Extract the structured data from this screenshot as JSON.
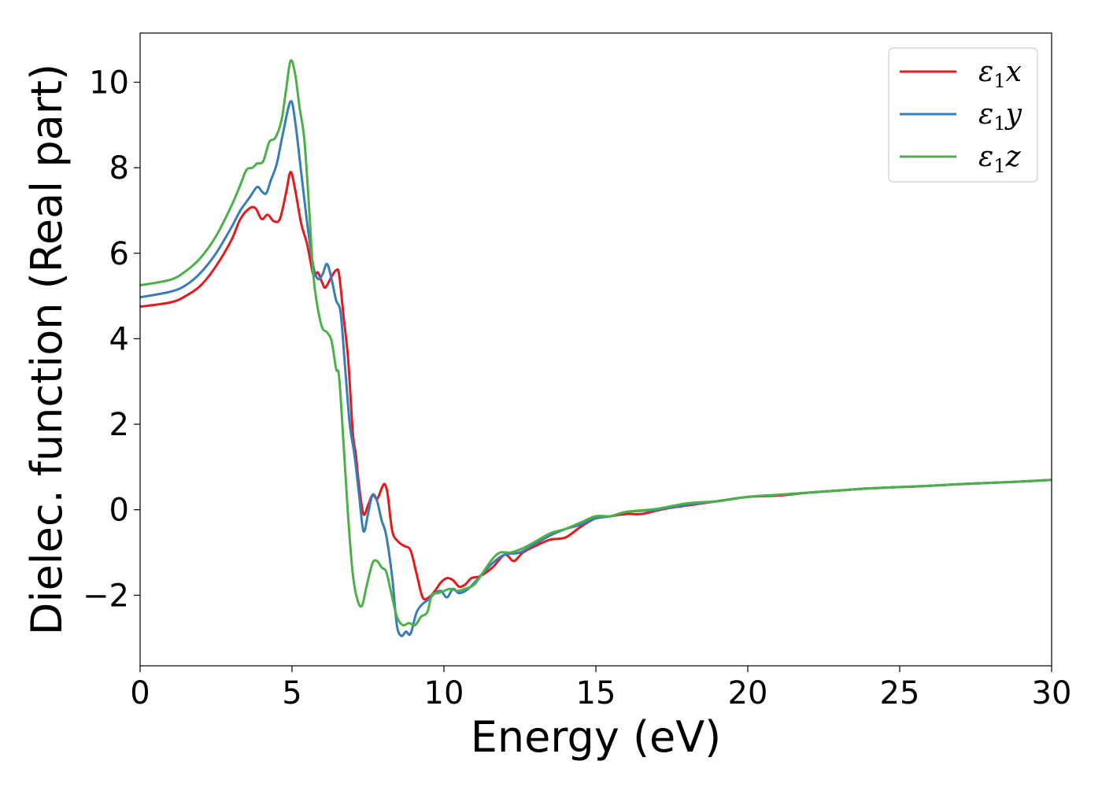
{
  "chart_data": {
    "type": "line",
    "title": "",
    "xlabel": "Energy (eV)",
    "ylabel": "Dielec. function (Real part)",
    "xlim": [
      0,
      30
    ],
    "ylim": [
      -3.65,
      11.15
    ],
    "xticks": [
      0,
      5,
      10,
      15,
      20,
      25,
      30
    ],
    "xtick_labels": [
      "0",
      "5",
      "10",
      "15",
      "20",
      "25",
      "30"
    ],
    "yticks": [
      -2,
      0,
      2,
      4,
      6,
      8,
      10
    ],
    "ytick_labels": [
      "−2",
      "0",
      "2",
      "4",
      "6",
      "8",
      "10"
    ],
    "grid": false,
    "legend_position": "top-right",
    "series": [
      {
        "name": "ε1x",
        "name_base": "ε",
        "name_sub": "1",
        "name_suffix": "x",
        "color": "#e41a1c",
        "points": [
          [
            0,
            4.75
          ],
          [
            1,
            4.85
          ],
          [
            1.5,
            5.0
          ],
          [
            2,
            5.25
          ],
          [
            2.5,
            5.7
          ],
          [
            3,
            6.3
          ],
          [
            3.3,
            6.8
          ],
          [
            3.6,
            7.05
          ],
          [
            3.8,
            7.05
          ],
          [
            4,
            6.8
          ],
          [
            4.2,
            6.9
          ],
          [
            4.4,
            6.75
          ],
          [
            4.6,
            6.8
          ],
          [
            4.8,
            7.4
          ],
          [
            4.95,
            7.9
          ],
          [
            5.1,
            7.5
          ],
          [
            5.3,
            6.7
          ],
          [
            5.5,
            6.2
          ],
          [
            5.7,
            5.5
          ],
          [
            5.85,
            5.55
          ],
          [
            6.0,
            5.3
          ],
          [
            6.1,
            5.2
          ],
          [
            6.3,
            5.45
          ],
          [
            6.45,
            5.6
          ],
          [
            6.55,
            5.5
          ],
          [
            6.7,
            4.5
          ],
          [
            6.85,
            3.5
          ],
          [
            7.0,
            1.8
          ],
          [
            7.1,
            1.3
          ],
          [
            7.2,
            0.6
          ],
          [
            7.35,
            -0.1
          ],
          [
            7.5,
            0.1
          ],
          [
            7.65,
            0.35
          ],
          [
            7.8,
            0.25
          ],
          [
            7.95,
            0.5
          ],
          [
            8.05,
            0.6
          ],
          [
            8.15,
            0.35
          ],
          [
            8.3,
            -0.5
          ],
          [
            8.5,
            -0.75
          ],
          [
            8.7,
            -0.85
          ],
          [
            8.9,
            -0.95
          ],
          [
            9.1,
            -1.5
          ],
          [
            9.3,
            -2.05
          ],
          [
            9.5,
            -2.05
          ],
          [
            9.7,
            -1.9
          ],
          [
            9.9,
            -1.7
          ],
          [
            10.1,
            -1.6
          ],
          [
            10.3,
            -1.65
          ],
          [
            10.5,
            -1.8
          ],
          [
            10.7,
            -1.75
          ],
          [
            10.9,
            -1.6
          ],
          [
            11.2,
            -1.55
          ],
          [
            11.6,
            -1.35
          ],
          [
            12.0,
            -1.05
          ],
          [
            12.3,
            -1.2
          ],
          [
            12.6,
            -1.0
          ],
          [
            13.0,
            -0.85
          ],
          [
            13.5,
            -0.7
          ],
          [
            14.0,
            -0.65
          ],
          [
            14.5,
            -0.4
          ],
          [
            15.0,
            -0.2
          ],
          [
            15.5,
            -0.15
          ],
          [
            16.0,
            -0.1
          ],
          [
            16.5,
            -0.1
          ],
          [
            17.0,
            -0.02
          ],
          [
            17.5,
            0.05
          ],
          [
            18.0,
            0.1
          ],
          [
            19.0,
            0.2
          ],
          [
            20.0,
            0.3
          ],
          [
            21.0,
            0.33
          ],
          [
            22.0,
            0.4
          ],
          [
            23.0,
            0.45
          ],
          [
            24.0,
            0.5
          ],
          [
            25.0,
            0.53
          ],
          [
            26.0,
            0.56
          ],
          [
            27.0,
            0.6
          ],
          [
            28.0,
            0.63
          ],
          [
            29.0,
            0.66
          ],
          [
            30.0,
            0.7
          ]
        ]
      },
      {
        "name": "ε1y",
        "name_base": "ε",
        "name_sub": "1",
        "name_suffix": "y",
        "color": "#377eb8",
        "points": [
          [
            0,
            4.97
          ],
          [
            1,
            5.1
          ],
          [
            1.5,
            5.25
          ],
          [
            2,
            5.55
          ],
          [
            2.5,
            6.0
          ],
          [
            3,
            6.6
          ],
          [
            3.3,
            7.0
          ],
          [
            3.6,
            7.3
          ],
          [
            3.85,
            7.55
          ],
          [
            4.0,
            7.45
          ],
          [
            4.15,
            7.4
          ],
          [
            4.3,
            7.7
          ],
          [
            4.5,
            8.1
          ],
          [
            4.7,
            8.8
          ],
          [
            4.95,
            9.55
          ],
          [
            5.1,
            9.1
          ],
          [
            5.3,
            7.9
          ],
          [
            5.5,
            6.7
          ],
          [
            5.7,
            5.7
          ],
          [
            5.85,
            5.4
          ],
          [
            6.0,
            5.5
          ],
          [
            6.15,
            5.75
          ],
          [
            6.3,
            5.4
          ],
          [
            6.45,
            4.9
          ],
          [
            6.6,
            4.6
          ],
          [
            6.75,
            3.3
          ],
          [
            6.9,
            2.0
          ],
          [
            7.05,
            1.3
          ],
          [
            7.2,
            0.4
          ],
          [
            7.35,
            -0.5
          ],
          [
            7.5,
            -0.1
          ],
          [
            7.65,
            0.35
          ],
          [
            7.8,
            0.2
          ],
          [
            7.95,
            -0.25
          ],
          [
            8.1,
            -0.6
          ],
          [
            8.3,
            -1.6
          ],
          [
            8.45,
            -2.7
          ],
          [
            8.6,
            -2.95
          ],
          [
            8.75,
            -2.85
          ],
          [
            8.9,
            -2.9
          ],
          [
            9.1,
            -2.4
          ],
          [
            9.3,
            -2.2
          ],
          [
            9.5,
            -2.1
          ],
          [
            9.7,
            -1.95
          ],
          [
            9.9,
            -1.9
          ],
          [
            10.1,
            -2.05
          ],
          [
            10.3,
            -1.85
          ],
          [
            10.5,
            -1.95
          ],
          [
            10.8,
            -1.85
          ],
          [
            11.2,
            -1.55
          ],
          [
            11.6,
            -1.25
          ],
          [
            12.0,
            -1.05
          ],
          [
            12.5,
            -1.0
          ],
          [
            13.0,
            -0.8
          ],
          [
            13.5,
            -0.6
          ],
          [
            14.0,
            -0.45
          ],
          [
            14.5,
            -0.35
          ],
          [
            15.0,
            -0.2
          ],
          [
            15.5,
            -0.15
          ],
          [
            16.0,
            -0.05
          ],
          [
            17.0,
            0.0
          ],
          [
            18.0,
            0.12
          ],
          [
            19.0,
            0.2
          ],
          [
            20.0,
            0.3
          ],
          [
            21.0,
            0.35
          ],
          [
            22.0,
            0.4
          ],
          [
            23.0,
            0.45
          ],
          [
            24.0,
            0.5
          ],
          [
            25.0,
            0.53
          ],
          [
            26.0,
            0.56
          ],
          [
            27.0,
            0.6
          ],
          [
            28.0,
            0.63
          ],
          [
            29.0,
            0.66
          ],
          [
            30.0,
            0.7
          ]
        ]
      },
      {
        "name": "ε1z",
        "name_base": "ε",
        "name_sub": "1",
        "name_suffix": "z",
        "color": "#4daf4a",
        "points": [
          [
            0,
            5.25
          ],
          [
            1,
            5.38
          ],
          [
            1.5,
            5.58
          ],
          [
            2,
            5.9
          ],
          [
            2.5,
            6.4
          ],
          [
            3,
            7.1
          ],
          [
            3.3,
            7.6
          ],
          [
            3.5,
            7.95
          ],
          [
            3.7,
            8.0
          ],
          [
            3.85,
            8.1
          ],
          [
            4.05,
            8.15
          ],
          [
            4.25,
            8.6
          ],
          [
            4.45,
            8.7
          ],
          [
            4.65,
            9.1
          ],
          [
            4.8,
            9.8
          ],
          [
            4.95,
            10.5
          ],
          [
            5.1,
            10.2
          ],
          [
            5.25,
            9.4
          ],
          [
            5.4,
            8.7
          ],
          [
            5.55,
            7.2
          ],
          [
            5.7,
            5.5
          ],
          [
            5.85,
            4.7
          ],
          [
            6.0,
            4.25
          ],
          [
            6.15,
            4.15
          ],
          [
            6.3,
            3.95
          ],
          [
            6.45,
            3.3
          ],
          [
            6.55,
            3.1
          ],
          [
            6.7,
            1.5
          ],
          [
            6.85,
            -0.2
          ],
          [
            7.0,
            -1.5
          ],
          [
            7.15,
            -2.1
          ],
          [
            7.3,
            -2.25
          ],
          [
            7.45,
            -1.8
          ],
          [
            7.65,
            -1.25
          ],
          [
            7.8,
            -1.2
          ],
          [
            7.95,
            -1.35
          ],
          [
            8.1,
            -1.45
          ],
          [
            8.25,
            -1.9
          ],
          [
            8.45,
            -2.5
          ],
          [
            8.65,
            -2.7
          ],
          [
            8.85,
            -2.65
          ],
          [
            9.05,
            -2.7
          ],
          [
            9.25,
            -2.5
          ],
          [
            9.45,
            -2.4
          ],
          [
            9.6,
            -2.0
          ],
          [
            9.8,
            -1.95
          ],
          [
            10.0,
            -1.9
          ],
          [
            10.2,
            -1.85
          ],
          [
            10.45,
            -1.9
          ],
          [
            10.7,
            -1.85
          ],
          [
            11.0,
            -1.75
          ],
          [
            11.3,
            -1.45
          ],
          [
            11.6,
            -1.15
          ],
          [
            11.85,
            -1.0
          ],
          [
            12.2,
            -1.0
          ],
          [
            12.6,
            -0.9
          ],
          [
            13.0,
            -0.75
          ],
          [
            13.5,
            -0.55
          ],
          [
            14.0,
            -0.45
          ],
          [
            14.5,
            -0.3
          ],
          [
            15.0,
            -0.15
          ],
          [
            15.5,
            -0.15
          ],
          [
            16.0,
            -0.05
          ],
          [
            17.0,
            0.02
          ],
          [
            18.0,
            0.15
          ],
          [
            19.0,
            0.2
          ],
          [
            20.0,
            0.3
          ],
          [
            21.0,
            0.35
          ],
          [
            22.0,
            0.4
          ],
          [
            23.0,
            0.45
          ],
          [
            24.0,
            0.5
          ],
          [
            25.0,
            0.53
          ],
          [
            26.0,
            0.56
          ],
          [
            27.0,
            0.6
          ],
          [
            28.0,
            0.63
          ],
          [
            29.0,
            0.66
          ],
          [
            30.0,
            0.7
          ]
        ]
      }
    ]
  }
}
